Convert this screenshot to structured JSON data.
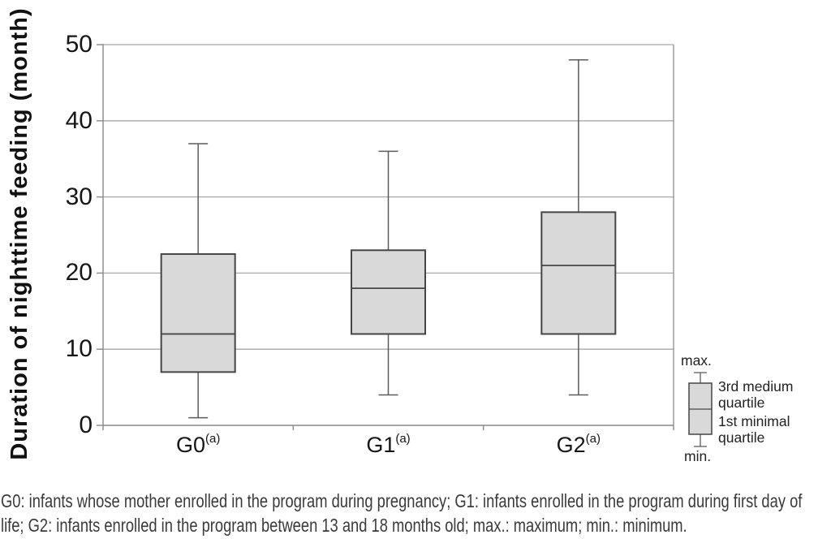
{
  "figure": {
    "caption_line1": "G0: infants whose mother enrolled in the program during pregnancy; G1: infants enrolled in the program during first day of",
    "caption_line2": "life; G2: infants enrolled in the program between 13 and 18 months old; max.: maximum; min.: minimum."
  },
  "legend": {
    "max_label": "max.",
    "min_label": "min.",
    "q3_label_line1": "3rd medium",
    "q3_label_line2": "quartile",
    "q1_label_line1": "1st minimal",
    "q1_label_line2": "quartile"
  },
  "chart_data": {
    "type": "boxplot",
    "title": "",
    "xlabel": "",
    "ylabel": "Duration of nighttime feeding (month)",
    "categories": [
      "G0",
      "G1",
      "G2"
    ],
    "category_superscript": "(a)",
    "series": [
      {
        "name": "G0",
        "min": 1,
        "q1": 7,
        "median": 12,
        "q3": 22.5,
        "max": 37
      },
      {
        "name": "G1",
        "min": 4,
        "q1": 12,
        "median": 18,
        "q3": 23,
        "max": 36
      },
      {
        "name": "G2",
        "min": 4,
        "q1": 12,
        "median": 21,
        "q3": 28,
        "max": 48
      }
    ],
    "ylim": [
      0,
      50
    ],
    "yticks": [
      0,
      10,
      20,
      30,
      40,
      50
    ],
    "grid": true,
    "legend_position": "right-bottom",
    "legend_note": "box shows 1st (minimal) to 3rd (medium) quartile with median line; whiskers show min. and max."
  },
  "colors": {
    "box_fill": "#d9d9d9",
    "box_border": "#454545",
    "median": "#454545",
    "whisker": "#5c5c5c",
    "gridline": "#a8a8a8",
    "axis": "#8f8f8f",
    "tick_text": "#161616",
    "caption_text": "#3a3a3a"
  }
}
